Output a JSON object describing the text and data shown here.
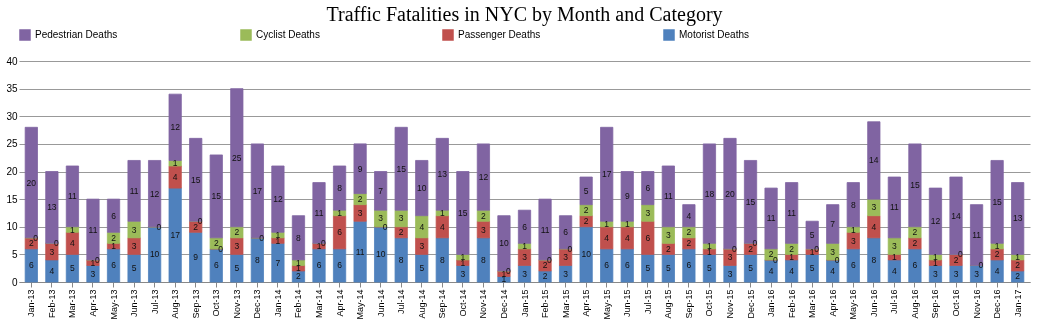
{
  "chart_data": {
    "type": "bar",
    "title": "Traffic Fatalities in NYC by Month and Category",
    "stacked": true,
    "legend": "top",
    "grid": "y",
    "categories": [
      "Jan-13",
      "Feb-13",
      "Mar-13",
      "Apr-13",
      "May-13",
      "Jun-13",
      "Jul-13",
      "Aug-13",
      "Sep-13",
      "Oct-13",
      "Nov-13",
      "Dec-13",
      "Jan-14",
      "Feb-14",
      "Mar-14",
      "Apr-14",
      "May-14",
      "Jun-14",
      "Jul-14",
      "Aug-14",
      "Sep-14",
      "Oct-14",
      "Nov-14",
      "Dec-14",
      "Jan-15",
      "Feb-15",
      "Mar-15",
      "Apr-15",
      "May-15",
      "Jun-15",
      "Jul-15",
      "Aug-15",
      "Sep-15",
      "Oct-15",
      "Nov-15",
      "Dec-15",
      "Jan-16",
      "Feb-16",
      "Mar-16",
      "Apr-16",
      "May-16",
      "Jun-16",
      "Jul-16",
      "Aug-16",
      "Sep-16",
      "Oct-16",
      "Nov-16",
      "Dec-16",
      "Jan-17"
    ],
    "ylim": [
      0,
      40
    ],
    "yticks": [
      0,
      5,
      10,
      15,
      20,
      25,
      30,
      35,
      40
    ],
    "series": [
      {
        "name": "Motorist Deaths",
        "color": "#4f81bd",
        "values": [
          6,
          4,
          5,
          3,
          6,
          5,
          10,
          17,
          9,
          6,
          5,
          8,
          7,
          2,
          6,
          6,
          11,
          10,
          8,
          5,
          8,
          3,
          8,
          1,
          3,
          2,
          3,
          10,
          6,
          6,
          5,
          5,
          6,
          5,
          3,
          5,
          4,
          4,
          5,
          4,
          6,
          8,
          4,
          6,
          3,
          3,
          3,
          4,
          2
        ],
        "value_labels": [
          "6",
          "4",
          "5",
          "3",
          "6",
          "5",
          "10",
          "17",
          "9",
          "6",
          "5",
          "8",
          "7",
          "2",
          "6",
          "6",
          "11",
          "10",
          "8",
          "5",
          "8",
          "3",
          "8",
          "1",
          "3",
          "2",
          "3",
          "10",
          "6",
          "6",
          "5",
          "5",
          "6",
          "5",
          "3",
          "5",
          "4",
          "4",
          "5",
          "4",
          "6",
          "8",
          "4",
          "6",
          "3",
          "3",
          "3",
          "4",
          "2"
        ]
      },
      {
        "name": "Passenger Deaths",
        "color": "#c0504d",
        "values": [
          2,
          3,
          4,
          1,
          1,
          3,
          0,
          4,
          2,
          0,
          3,
          0,
          1,
          1,
          1,
          6,
          3,
          0,
          2,
          3,
          4,
          1,
          3,
          1,
          3,
          2,
          3,
          2,
          4,
          4,
          6,
          2,
          2,
          1,
          3,
          2,
          0,
          1,
          1,
          0,
          3,
          4,
          1,
          2,
          1,
          2,
          0,
          2,
          2
        ],
        "value_labels": [
          "2",
          "3",
          "4",
          "1",
          "1",
          "3",
          "0",
          "4",
          "2",
          "0",
          "3",
          "0",
          "1",
          "1",
          "1",
          "6",
          "3",
          "0",
          "2",
          "3",
          "4",
          "1",
          "3",
          "1",
          "3",
          "2",
          "3",
          "2",
          "4",
          "4",
          "6",
          "2",
          "2",
          "1",
          "3",
          "2",
          "0",
          "1",
          "1",
          "0",
          "3",
          "4",
          "1",
          "2",
          "1",
          "2",
          "0",
          "2",
          "2"
        ]
      },
      {
        "name": "Cyclist Deaths",
        "color": "#9bbb59",
        "values": [
          0,
          0,
          1,
          0,
          2,
          3,
          0,
          1,
          0,
          2,
          2,
          0,
          1,
          1,
          0,
          1,
          2,
          3,
          3,
          4,
          1,
          1,
          2,
          0,
          1,
          0,
          0,
          2,
          1,
          1,
          3,
          3,
          2,
          1,
          0,
          0,
          2,
          2,
          0,
          3,
          1,
          3,
          3,
          2,
          1,
          0,
          0,
          1,
          1
        ],
        "value_labels": [
          "0",
          "0",
          "1",
          "0",
          "2",
          "3",
          null,
          "1",
          "0",
          "2",
          "2",
          null,
          "1",
          "1",
          "0",
          "1",
          "2",
          "3",
          "3",
          "4",
          "1",
          "1",
          "2",
          "0",
          "1",
          "0",
          "0",
          "2",
          "1",
          "1",
          "3",
          "3",
          "2",
          "1",
          "0",
          "0",
          "2",
          "2",
          "0",
          "3",
          "1",
          "3",
          "3",
          "2",
          "1",
          "0",
          null,
          "1",
          "1"
        ]
      },
      {
        "name": "Pedestrian Deaths",
        "color": "#8064a2",
        "values": [
          20,
          13,
          11,
          11,
          6,
          11,
          12,
          12,
          15,
          15,
          25,
          17,
          12,
          8,
          11,
          8,
          9,
          7,
          15,
          10,
          13,
          15,
          12,
          10,
          6,
          11,
          6,
          5,
          17,
          9,
          6,
          11,
          4,
          18,
          20,
          15,
          11,
          11,
          5,
          7,
          8,
          14,
          11,
          15,
          12,
          14,
          11,
          15,
          13
        ],
        "value_labels": [
          "20",
          "13",
          "11",
          "11",
          "6",
          "11",
          "12",
          "12",
          "15",
          "15",
          "25",
          "17",
          "12",
          "8",
          "11",
          "8",
          "9",
          "7",
          "15",
          "10",
          "13",
          "15",
          "12",
          "10",
          "6",
          "11",
          "6",
          "5",
          "17",
          "9",
          "6",
          "11",
          "4",
          "18",
          "20",
          "15",
          "11",
          "11",
          "5",
          "7",
          "8",
          "14",
          "11",
          "15",
          "12",
          "14",
          "11",
          "15",
          "13"
        ]
      }
    ]
  }
}
